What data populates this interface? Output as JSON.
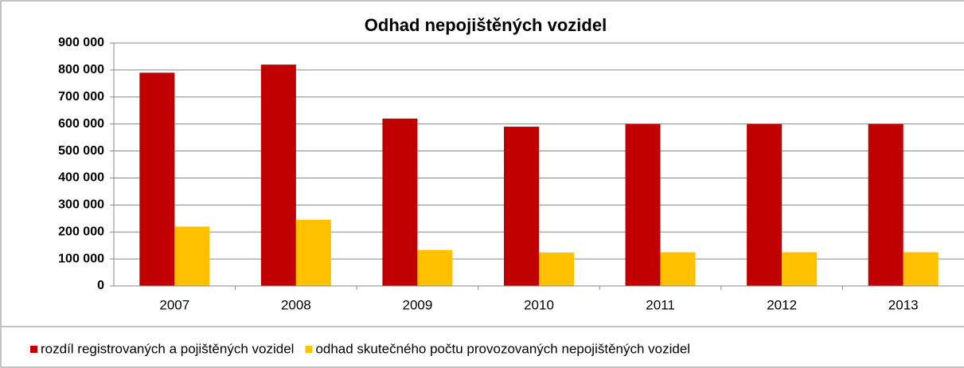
{
  "chart_data": {
    "type": "bar",
    "title": "Odhad nepojištěných vozidel",
    "categories": [
      "2007",
      "2008",
      "2009",
      "2010",
      "2011",
      "2012",
      "2013"
    ],
    "series": [
      {
        "name": "rozdíl registrovaných a pojištěných vozidel",
        "color": "#c00000",
        "values": [
          790000,
          820000,
          620000,
          590000,
          600000,
          600000,
          600000
        ]
      },
      {
        "name": "odhad skutečného počtu provozovaných nepojištěných vozidel",
        "color": "#ffc000",
        "values": [
          220000,
          245000,
          133000,
          124000,
          125000,
          125000,
          125000
        ]
      }
    ],
    "ylim": [
      0,
      900000
    ],
    "yticks": [
      0,
      {
        "value": 100000,
        "label": "100 000"
      },
      {
        "value": 200000,
        "label": "200 000"
      },
      {
        "value": 300000,
        "label": "300 000"
      },
      {
        "value": 400000,
        "label": "400 000"
      },
      {
        "value": 500000,
        "label": "500 000"
      },
      {
        "value": 600000,
        "label": "600 000"
      },
      {
        "value": 700000,
        "label": "700 000"
      },
      {
        "value": 800000,
        "label": "800 000"
      },
      {
        "value": 900000,
        "label": "900 000"
      }
    ],
    "grid": true,
    "legend": "bottom"
  }
}
